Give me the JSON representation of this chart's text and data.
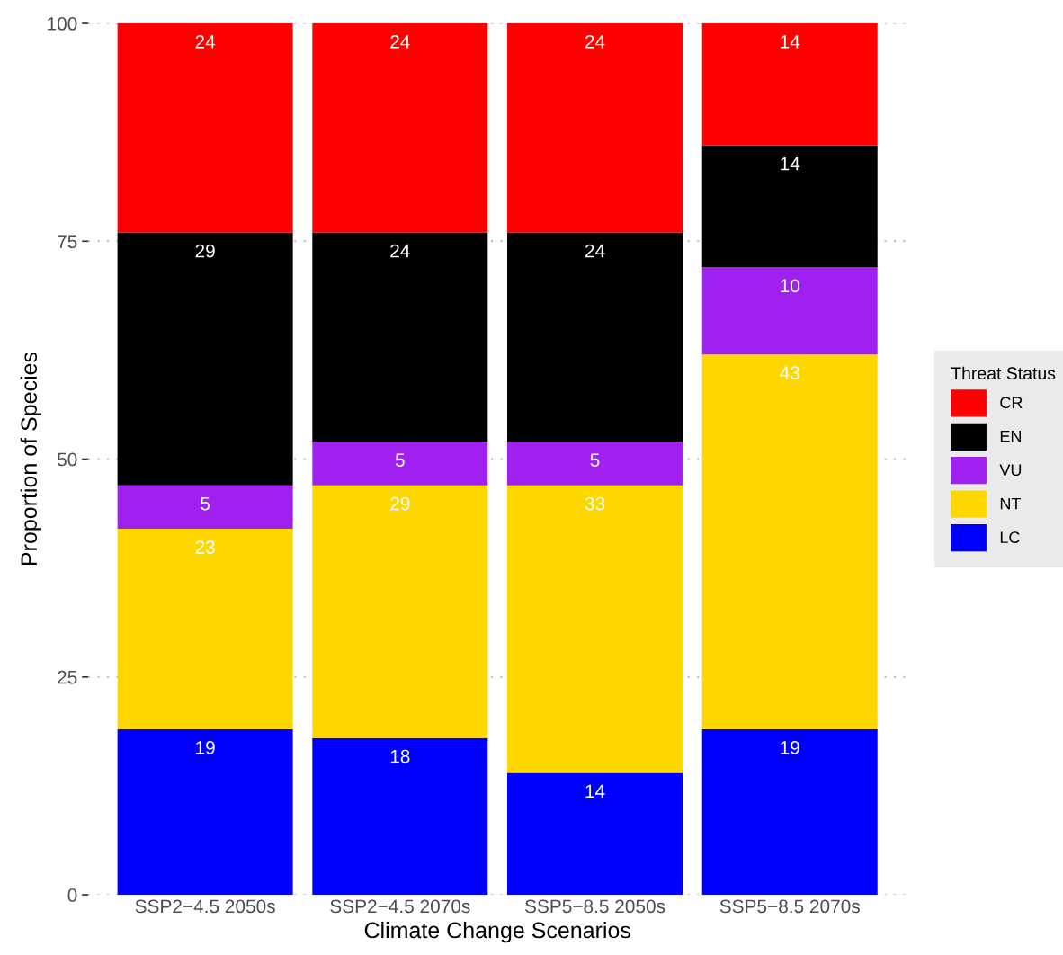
{
  "chart_data": {
    "type": "bar",
    "stacked": true,
    "xlabel": "Climate Change Scenarios",
    "ylabel": "Proportion of Species",
    "legend_title": "Threat Status",
    "categories": [
      "SSP2−4.5 2050s",
      "SSP2−4.5 2070s",
      "SSP5−8.5 2050s",
      "SSP5−8.5 2070s"
    ],
    "series": [
      {
        "name": "LC",
        "color": "#0000ff",
        "values": [
          19,
          18,
          14,
          19
        ]
      },
      {
        "name": "NT",
        "color": "#ffd700",
        "values": [
          23,
          29,
          33,
          43
        ]
      },
      {
        "name": "VU",
        "color": "#a020f0",
        "values": [
          5,
          5,
          5,
          10
        ]
      },
      {
        "name": "EN",
        "color": "#000000",
        "values": [
          29,
          24,
          24,
          14
        ]
      },
      {
        "name": "CR",
        "color": "#ff0000",
        "values": [
          24,
          24,
          24,
          14
        ]
      }
    ],
    "ylim": [
      0,
      100
    ],
    "yticks": [
      0,
      25,
      50,
      75,
      100
    ],
    "grid": "y",
    "legend": "right",
    "data_labels": true
  }
}
